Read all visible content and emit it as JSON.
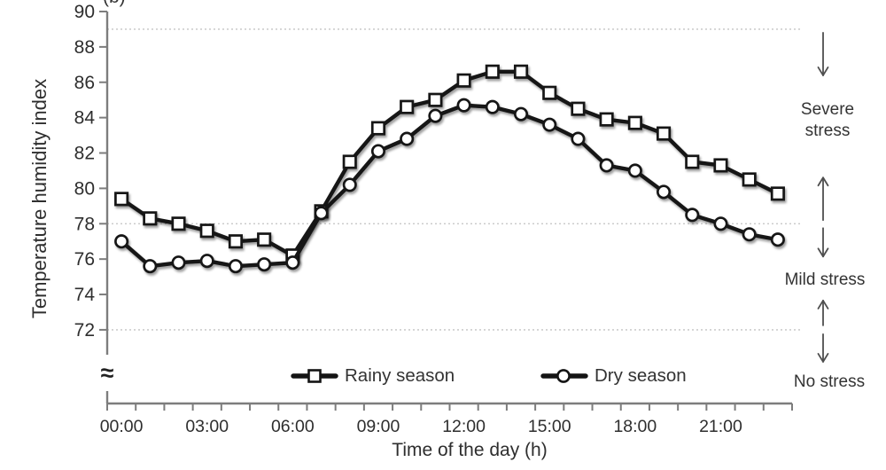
{
  "chart_data": {
    "type": "line",
    "panel_label": "(b)",
    "xlabel": "Time of the day (h)",
    "ylabel": "Temperature humidity index",
    "axis_break_symbol": "≈",
    "ylim": [
      72,
      90
    ],
    "yticks": [
      90,
      88,
      86,
      84,
      82,
      80,
      78,
      76,
      74,
      72
    ],
    "y_axis_break": true,
    "gridlines": [
      89,
      78,
      72
    ],
    "grid_style": "horizontal-dotted",
    "x_hours": [
      0,
      1,
      2,
      3,
      4,
      5,
      6,
      7,
      8,
      9,
      10,
      11,
      12,
      13,
      14,
      15,
      16,
      17,
      18,
      19,
      20,
      21,
      22,
      23
    ],
    "x_tick_labels": [
      "00:00",
      "03:00",
      "06:00",
      "09:00",
      "12:00",
      "15:00",
      "18:00",
      "21:00"
    ],
    "series": [
      {
        "name": "Rainy season",
        "marker": "square",
        "values": [
          79.4,
          78.3,
          78.0,
          77.6,
          77.0,
          77.1,
          76.2,
          78.7,
          81.5,
          83.4,
          84.6,
          85.0,
          86.1,
          86.6,
          86.6,
          85.4,
          84.5,
          83.9,
          83.7,
          83.1,
          81.5,
          81.3,
          80.5,
          79.7
        ]
      },
      {
        "name": "Dry season",
        "marker": "circle",
        "values": [
          77.0,
          75.6,
          75.8,
          75.9,
          75.6,
          75.7,
          75.8,
          78.6,
          80.2,
          82.1,
          82.8,
          84.1,
          84.7,
          84.6,
          84.2,
          83.6,
          82.8,
          81.3,
          81.0,
          79.8,
          78.5,
          78.0,
          77.4,
          77.1
        ]
      }
    ],
    "zones": [
      {
        "label": "Severe stress",
        "range_thi": [
          78,
          89
        ]
      },
      {
        "label": "Mild stress",
        "range_thi": [
          72,
          78
        ]
      },
      {
        "label": "No stress",
        "range_thi": [
          null,
          72
        ]
      }
    ],
    "legend_position": "bottom-inside"
  },
  "colors": {
    "series_line": "#141414",
    "marker_fill": "#ffffff",
    "gridline": "#c3c3c3",
    "axis": "#7d7d7d",
    "text": "#333333",
    "arrow": "#4f4f4f",
    "background": "#ffffff"
  }
}
